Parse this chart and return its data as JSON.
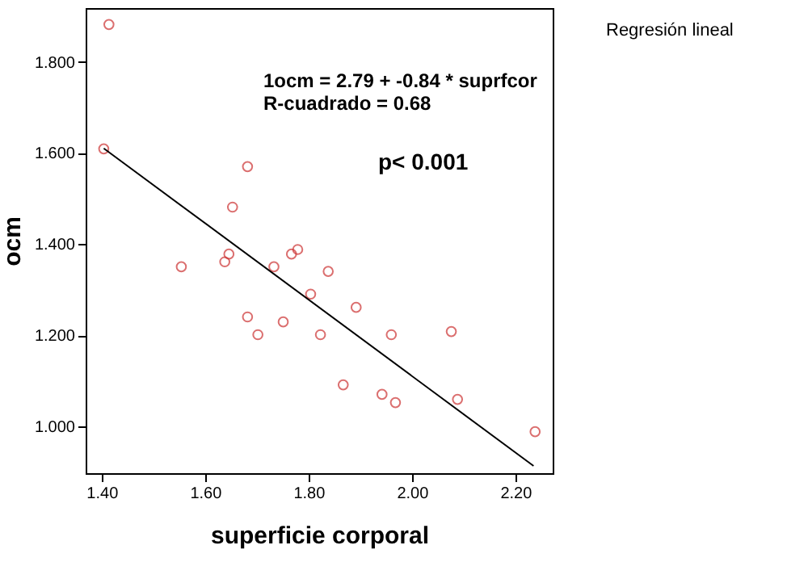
{
  "chart_data": {
    "type": "scatter",
    "xlabel": "superficie corporal",
    "ylabel": "ocm",
    "xlim": [
      1.369,
      2.272
    ],
    "ylim": [
      0.897,
      1.918
    ],
    "xticks": [
      {
        "value": 1.4,
        "label": "1.40"
      },
      {
        "value": 1.6,
        "label": "1.60"
      },
      {
        "value": 1.8,
        "label": "1.80"
      },
      {
        "value": 2.0,
        "label": "2.00"
      },
      {
        "value": 2.2,
        "label": "2.20"
      }
    ],
    "yticks": [
      {
        "value": 1.0,
        "label": "1.000"
      },
      {
        "value": 1.2,
        "label": "1.200"
      },
      {
        "value": 1.4,
        "label": "1.400"
      },
      {
        "value": 1.6,
        "label": "1.600"
      },
      {
        "value": 1.8,
        "label": "1.800"
      }
    ],
    "grid": false,
    "series": [
      {
        "color": "#cc3333",
        "marker": "circle",
        "x": [
          1.414,
          1.404,
          1.682,
          1.653,
          1.554,
          1.638,
          1.646,
          1.733,
          1.767,
          1.779,
          1.838,
          1.804,
          1.682,
          1.702,
          1.751,
          1.823,
          1.892,
          1.867,
          1.942,
          1.968,
          1.96,
          2.076,
          2.088,
          2.238
        ],
        "values": [
          1.882,
          1.609,
          1.57,
          1.481,
          1.35,
          1.361,
          1.378,
          1.35,
          1.378,
          1.388,
          1.34,
          1.29,
          1.24,
          1.201,
          1.229,
          1.201,
          1.261,
          1.091,
          1.07,
          1.052,
          1.201,
          1.208,
          1.059,
          0.988
        ]
      },
      {
        "type": "line",
        "color": "#000000",
        "marker": "none",
        "line_style": "solid",
        "x": [
          1.404,
          2.235
        ],
        "values": [
          1.61,
          0.913
        ]
      }
    ],
    "annotations": [
      "1ocm = 2.79 + -0.84 * suprfcor",
      "R-cuadrado = 0.68",
      "p< 0.001",
      "Regresión lineal"
    ]
  }
}
